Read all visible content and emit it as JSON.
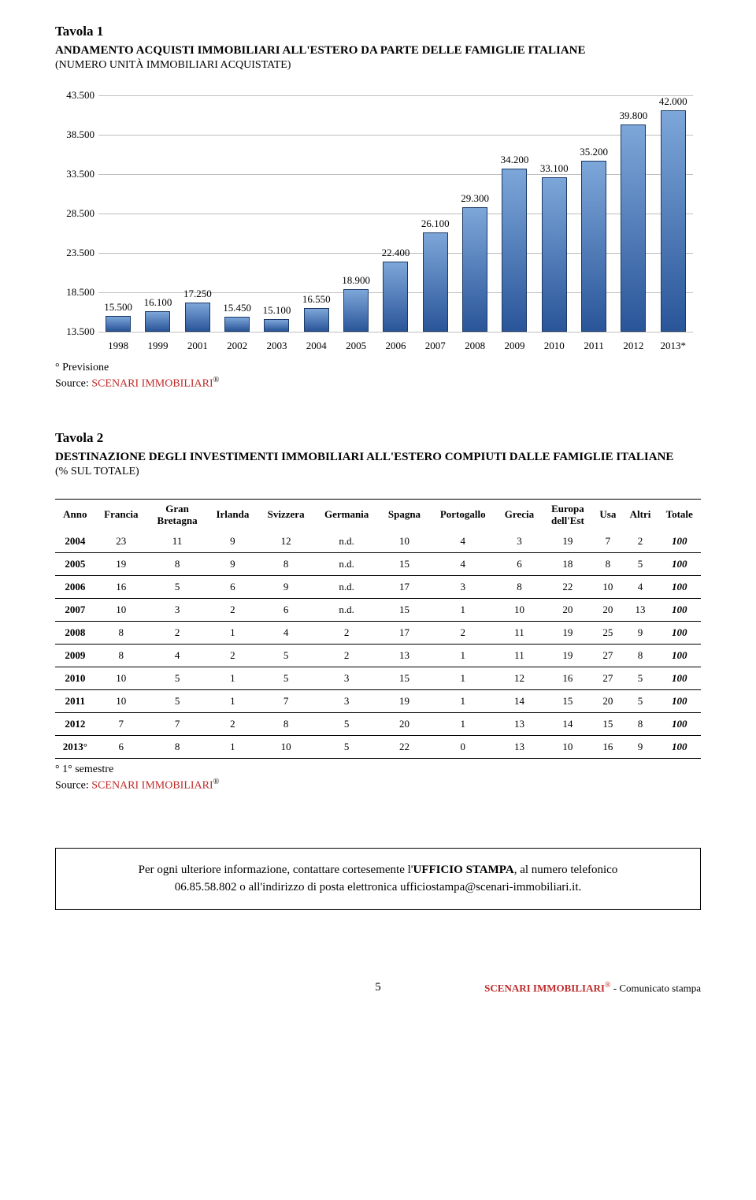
{
  "tavola1": {
    "label": "Tavola 1",
    "title": "ANDAMENTO ACQUISTI IMMOBILIARI ALL'ESTERO DA PARTE DELLE FAMIGLIE ITALIANE",
    "subtitle": "(NUMERO UNITÀ IMMOBILIARI ACQUISTATE)",
    "note": "° Previsione",
    "source_prefix": "Source: ",
    "source_name": "SCENARI IMMOBILIARI",
    "source_mark": "®"
  },
  "chart": {
    "type": "bar",
    "y_ticks": [
      "43.500",
      "38.500",
      "33.500",
      "28.500",
      "23.500",
      "18.500",
      "13.500"
    ],
    "y_min": 13500,
    "y_max": 43500,
    "grid_color": "#bfbfbf",
    "bar_fill_top": "#7da7d9",
    "bar_fill_bottom": "#2a5599",
    "bar_border": "#1a3966",
    "categories": [
      "1998",
      "1999",
      "2001",
      "2002",
      "2003",
      "2004",
      "2005",
      "2006",
      "2007",
      "2008",
      "2009",
      "2010",
      "2011",
      "2012",
      "2013*"
    ],
    "values": [
      15500,
      16100,
      17250,
      15450,
      15100,
      16550,
      18900,
      22400,
      26100,
      29300,
      34200,
      33100,
      35200,
      39800,
      42000
    ],
    "value_labels": [
      "15.500",
      "16.100",
      "17.250",
      "15.450",
      "15.100",
      "16.550",
      "18.900",
      "22.400",
      "26.100",
      "29.300",
      "34.200",
      "33.100",
      "35.200",
      "39.800",
      "42.000"
    ]
  },
  "tavola2": {
    "label": "Tavola 2",
    "title": "DESTINAZIONE DEGLI INVESTIMENTI IMMOBILIARI ALL'ESTERO COMPIUTI DALLE FAMIGLIE ITALIANE",
    "subtitle": "(% SUL TOTALE)",
    "note": "° 1° semestre",
    "source_prefix": "Source: ",
    "source_name": "SCENARI IMMOBILIARI",
    "source_mark": "®"
  },
  "table": {
    "headers": [
      "Anno",
      "Francia",
      "Gran Bretagna",
      "Irlanda",
      "Svizzera",
      "Germania",
      "Spagna",
      "Portogallo",
      "Grecia",
      "Europa dell'Est",
      "Usa",
      "Altri",
      "Totale"
    ],
    "rows": [
      [
        "2004",
        "23",
        "11",
        "9",
        "12",
        "n.d.",
        "10",
        "4",
        "3",
        "19",
        "7",
        "2",
        "100"
      ],
      [
        "2005",
        "19",
        "8",
        "9",
        "8",
        "n.d.",
        "15",
        "4",
        "6",
        "18",
        "8",
        "5",
        "100"
      ],
      [
        "2006",
        "16",
        "5",
        "6",
        "9",
        "n.d.",
        "17",
        "3",
        "8",
        "22",
        "10",
        "4",
        "100"
      ],
      [
        "2007",
        "10",
        "3",
        "2",
        "6",
        "n.d.",
        "15",
        "1",
        "10",
        "20",
        "20",
        "13",
        "100"
      ],
      [
        "2008",
        "8",
        "2",
        "1",
        "4",
        "2",
        "17",
        "2",
        "11",
        "19",
        "25",
        "9",
        "100"
      ],
      [
        "2009",
        "8",
        "4",
        "2",
        "5",
        "2",
        "13",
        "1",
        "11",
        "19",
        "27",
        "8",
        "100"
      ],
      [
        "2010",
        "10",
        "5",
        "1",
        "5",
        "3",
        "15",
        "1",
        "12",
        "16",
        "27",
        "5",
        "100"
      ],
      [
        "2011",
        "10",
        "5",
        "1",
        "7",
        "3",
        "19",
        "1",
        "14",
        "15",
        "20",
        "5",
        "100"
      ],
      [
        "2012",
        "7",
        "7",
        "2",
        "8",
        "5",
        "20",
        "1",
        "13",
        "14",
        "15",
        "8",
        "100"
      ],
      [
        "2013°",
        "6",
        "8",
        "1",
        "10",
        "5",
        "22",
        "0",
        "13",
        "10",
        "16",
        "9",
        "100"
      ]
    ]
  },
  "contact": {
    "line1_a": "Per ogni ulteriore informazione, contattare cortesemente l'",
    "line1_b": "UFFICIO STAMPA",
    "line1_c": ", al numero telefonico",
    "line2": "06.85.58.802  o all'indirizzo di posta elettronica  ufficiostampa@scenari-immobiliari.it."
  },
  "footer": {
    "page": "5",
    "brand": "SCENARI IMMOBILIARI",
    "mark": "®",
    "suffix": " - Comunicato stampa"
  }
}
